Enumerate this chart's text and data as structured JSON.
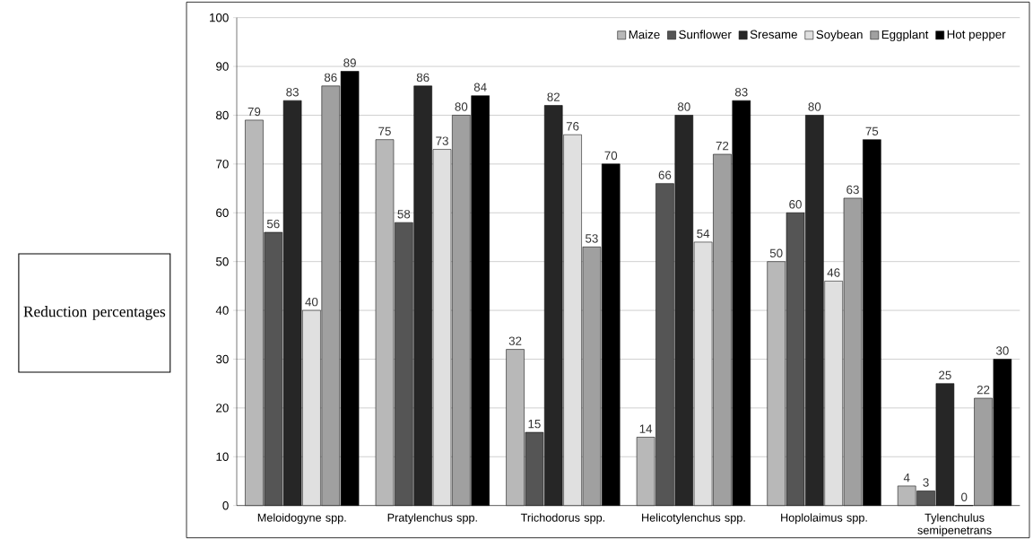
{
  "chart_data": {
    "type": "bar",
    "ylabel": "Reduction percentages",
    "categories": [
      "Meloidogyne spp.",
      "Pratylenchus spp.",
      "Trichodorus spp.",
      "Helicotylenchus spp.",
      "Hoplolaimus spp.",
      "Tylenchulus semipenetrans"
    ],
    "series": [
      {
        "name": "Maize",
        "color": "#b8b8b8",
        "values": [
          79,
          75,
          32,
          14,
          50,
          4
        ]
      },
      {
        "name": "Sunflower",
        "color": "#555555",
        "values": [
          56,
          58,
          15,
          66,
          60,
          3
        ]
      },
      {
        "name": "Sresame",
        "color": "#262626",
        "values": [
          83,
          86,
          82,
          80,
          80,
          25
        ]
      },
      {
        "name": "Soybean",
        "color": "#e0e0e0",
        "values": [
          40,
          73,
          76,
          54,
          46,
          0
        ]
      },
      {
        "name": "Eggplant",
        "color": "#a0a0a0",
        "values": [
          86,
          80,
          53,
          72,
          63,
          22
        ]
      },
      {
        "name": "Hot pepper",
        "color": "#000000",
        "values": [
          89,
          84,
          70,
          83,
          75,
          30
        ]
      }
    ],
    "ylim": [
      0,
      100
    ],
    "yticks": [
      0,
      10,
      20,
      30,
      40,
      50,
      60,
      70,
      80,
      90,
      100
    ],
    "grid": "y",
    "legend": "top right",
    "data_labels": true
  }
}
